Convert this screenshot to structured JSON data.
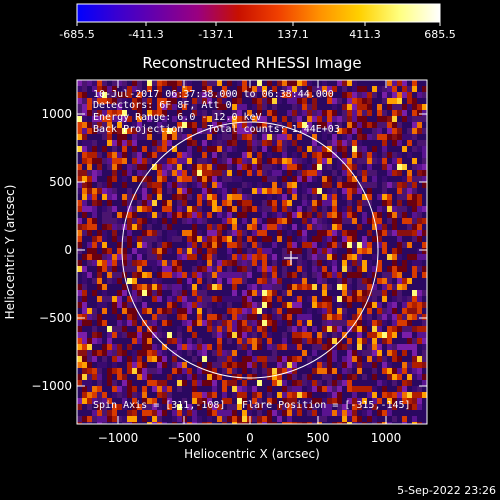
{
  "colorbar": {
    "tick_labels": [
      "-685.5",
      "-411.3",
      "-137.1",
      "137.1",
      "411.3",
      "685.5"
    ],
    "colormap": [
      "#0000ff",
      "#3a00d0",
      "#6a00a8",
      "#9a0080",
      "#c81000",
      "#f04000",
      "#ff9000",
      "#ffd000",
      "#ffff80",
      "#ffffff"
    ]
  },
  "plot": {
    "title": "Reconstructed RHESSI Image",
    "xlabel": "Heliocentric X (arcsec)",
    "ylabel": "Heliocentric Y (arcsec)",
    "info_lines": [
      "10-Jul-2017 06:37:38.000 to 06:38:44.000",
      "Detectors: 6F 8F, Att 0",
      "Energy Range: 6.0 - 12.0 keV",
      "Back Projection    Total counts: 1.44E+03"
    ],
    "spin_axis": "Spin Axis = [311,-108]",
    "flare_position": "Flare Position = [-315,-145]",
    "footer_date": "5-Sep-2022 23:26"
  },
  "chart_data": {
    "type": "heatmap",
    "title": "Reconstructed RHESSI Image",
    "xlabel": "Heliocentric X (arcsec)",
    "ylabel": "Heliocentric Y (arcsec)",
    "xlim": [
      -1300,
      1300
    ],
    "ylim": [
      -1300,
      1300
    ],
    "xticks": [
      -1000,
      -500,
      0,
      500,
      1000
    ],
    "yticks": [
      -1000,
      -500,
      0,
      500,
      1000
    ],
    "xtick_labels": [
      "−1000",
      "−500",
      "0",
      "500",
      "1000"
    ],
    "ytick_labels": [
      "−1000",
      "−500",
      "0",
      "500",
      "1000"
    ],
    "value_range": [
      -685.5,
      685.5
    ],
    "solar_disk": {
      "center": [
        0,
        0
      ],
      "radius_arcsec": 945
    },
    "marker": {
      "type": "cross",
      "position": [
        315,
        -50
      ]
    },
    "grid": false
  }
}
